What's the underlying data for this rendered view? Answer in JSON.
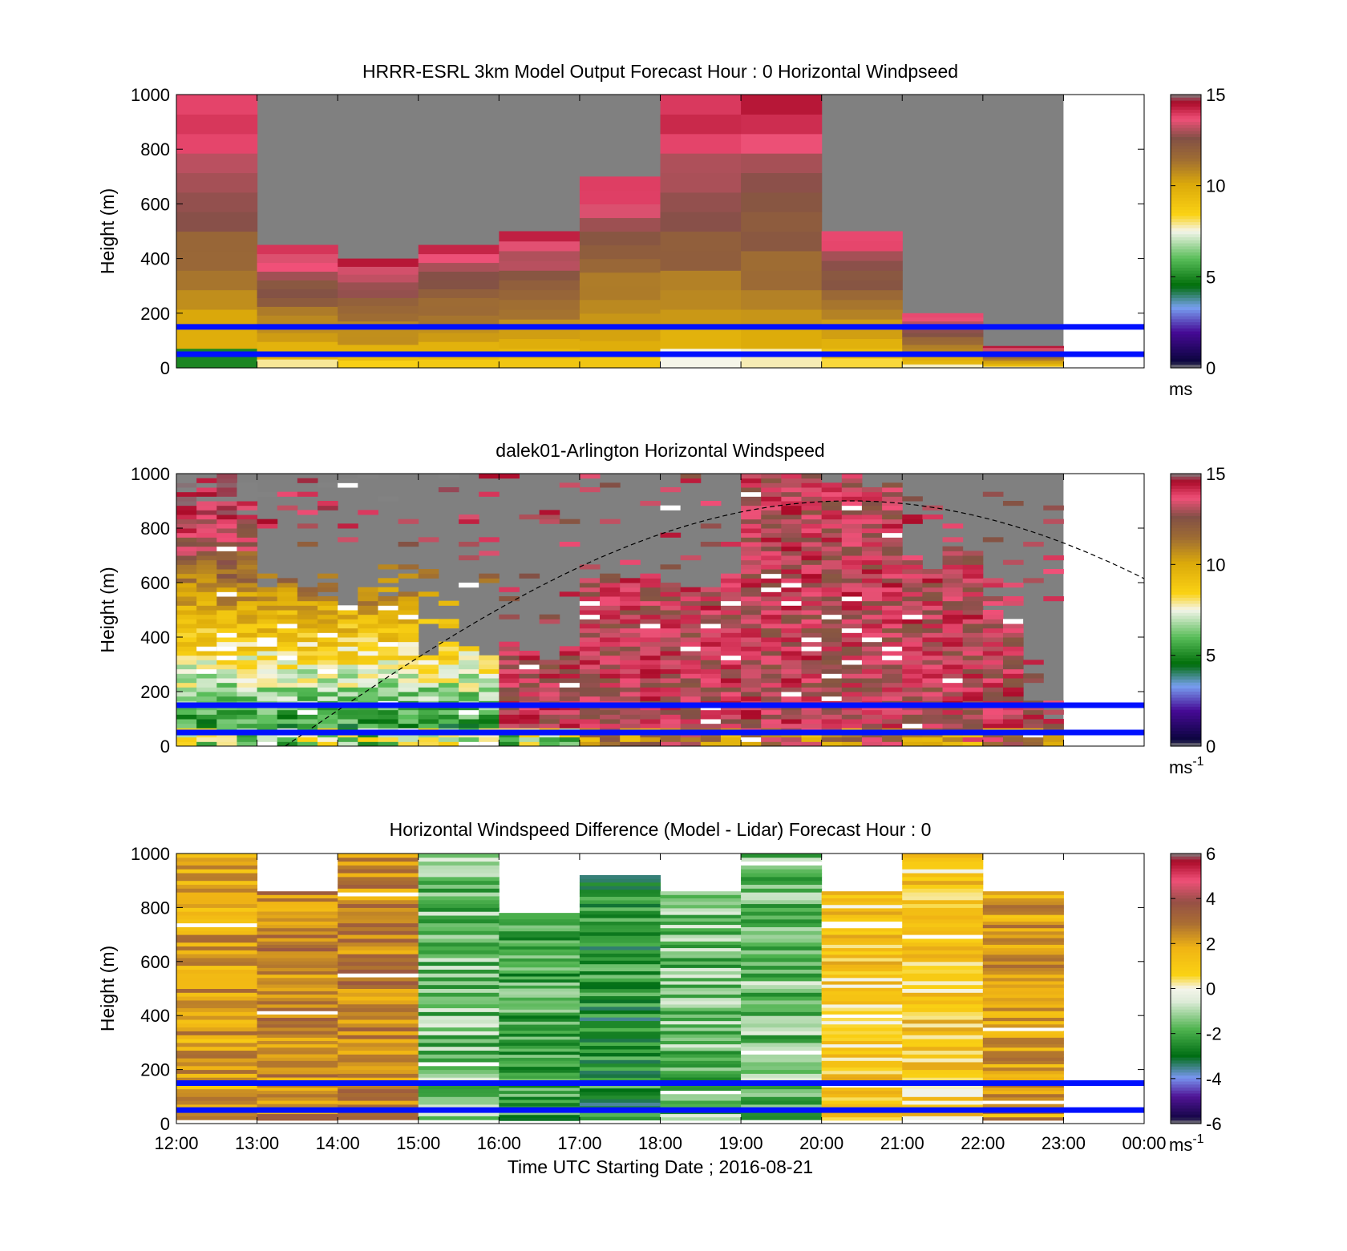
{
  "chart_data": [
    {
      "type": "heatmap",
      "title": "HRRR-ESRL 3km Model Output   Forecast Hour : 0 Horizontal Windpseed",
      "ylabel": "Height (m)",
      "xlabel": "",
      "ylim": [
        0,
        1000
      ],
      "xlim": [
        "12:00",
        "00:00"
      ],
      "yticks": [
        "0",
        "200",
        "400",
        "600",
        "800",
        "1000"
      ],
      "xticks": [],
      "colorbar": {
        "min": 0,
        "max": 15,
        "ticks": [
          "0",
          "5",
          "10",
          "15"
        ],
        "unit": "ms",
        "unit_sup": ""
      },
      "hour_columns": [
        {
          "hour": "12:00",
          "top": 1000
        },
        {
          "hour": "13:00",
          "top": 450
        },
        {
          "hour": "14:00",
          "top": 400
        },
        {
          "hour": "15:00",
          "top": 450
        },
        {
          "hour": "16:00",
          "top": 500
        },
        {
          "hour": "17:00",
          "top": 700
        },
        {
          "hour": "18:00",
          "top": 1000
        },
        {
          "hour": "19:00",
          "top": 1000
        },
        {
          "hour": "20:00",
          "top": 500
        },
        {
          "hour": "21:00",
          "top": 200
        },
        {
          "hour": "22:00",
          "top": 80
        }
      ],
      "background_nodata_until": "23:00",
      "reference_lines_m": [
        150,
        50
      ]
    },
    {
      "type": "heatmap",
      "title": "dalek01-Arlington  Horizontal Windspeed",
      "ylabel": "Height (m)",
      "xlabel": "",
      "ylim": [
        0,
        1000
      ],
      "xlim": [
        "12:00",
        "00:00"
      ],
      "yticks": [
        "0",
        "200",
        "400",
        "600",
        "800",
        "1000"
      ],
      "xticks": [],
      "colorbar": {
        "min": 0,
        "max": 15,
        "ticks": [
          "0",
          "5",
          "10",
          "15"
        ],
        "unit": "ms",
        "unit_sup": "-1"
      },
      "reference_lines_m": [
        150,
        50
      ],
      "dashed_curve": "sun elevation curve, peak ~900 m near 20:00"
    },
    {
      "type": "heatmap",
      "title": "Horizontal Windspeed Difference (Model - Lidar) Forecast Hour : 0",
      "ylabel": "Height (m)",
      "xlabel": "Time UTC  Starting Date ; 2016-08-21",
      "ylim": [
        0,
        1000
      ],
      "xlim": [
        "12:00",
        "00:00"
      ],
      "yticks": [
        "0",
        "200",
        "400",
        "600",
        "800",
        "1000"
      ],
      "xticks": [
        "12:00",
        "13:00",
        "14:00",
        "15:00",
        "16:00",
        "17:00",
        "18:00",
        "19:00",
        "20:00",
        "21:00",
        "22:00",
        "23:00",
        "00:00"
      ],
      "colorbar": {
        "min": -6,
        "max": 6,
        "ticks": [
          "-6",
          "-4",
          "-2",
          "0",
          "2",
          "4",
          "6"
        ],
        "unit": "ms",
        "unit_sup": "-1"
      },
      "hour_columns": [
        {
          "hour": "12:00",
          "top": 1000,
          "diff": 2.0
        },
        {
          "hour": "13:00",
          "top": 860,
          "diff": 2.5
        },
        {
          "hour": "14:00",
          "top": 1000,
          "diff": 2.5
        },
        {
          "hour": "15:00",
          "top": 1000,
          "diff": -1.5
        },
        {
          "hour": "16:00",
          "top": 780,
          "diff": -2.0
        },
        {
          "hour": "17:00",
          "top": 920,
          "diff": -2.5
        },
        {
          "hour": "18:00",
          "top": 860,
          "diff": -1.5
        },
        {
          "hour": "19:00",
          "top": 1000,
          "diff": -1.5
        },
        {
          "hour": "20:00",
          "top": 860,
          "diff": 1.0
        },
        {
          "hour": "21:00",
          "top": 1000,
          "diff": 1.0
        },
        {
          "hour": "22:00",
          "top": 860,
          "diff": 2.0
        }
      ],
      "reference_lines_m": [
        150,
        50
      ]
    }
  ]
}
